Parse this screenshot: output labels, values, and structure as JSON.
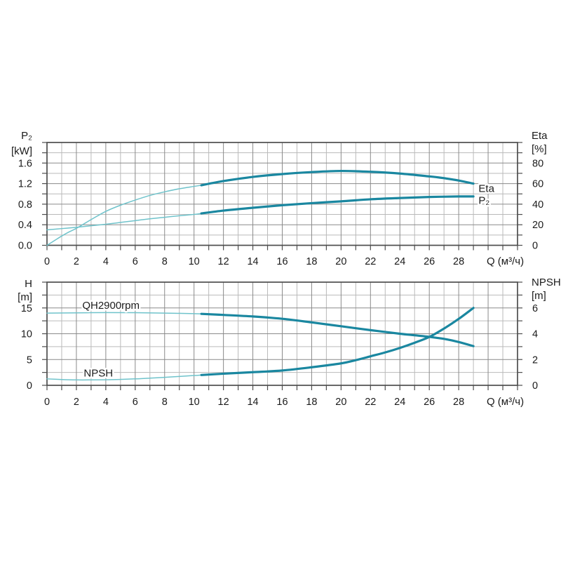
{
  "page": {
    "background": "#ffffff"
  },
  "colors": {
    "curve_main": "#1a87a0",
    "curve_light": "#6fc3cb",
    "grid_major": "#8a8a8a",
    "grid_minor": "#bababa",
    "axis": "#4d4d4d",
    "text": "#1b1b1b",
    "halo": "#ffffff"
  },
  "chart_data": [
    {
      "type": "line",
      "title": "Pump power and efficiency curves",
      "x_axis": {
        "label": "Q (м³/ч)",
        "min": 0,
        "max": 32,
        "minor_step": 1,
        "major_step": 2,
        "tick_values": [
          0,
          2,
          4,
          6,
          8,
          10,
          12,
          14,
          16,
          18,
          20,
          22,
          24,
          26,
          28
        ],
        "tick_labels": [
          "0",
          "2",
          "4",
          "6",
          "8",
          "10",
          "12",
          "14",
          "16",
          "18",
          "20",
          "22",
          "24",
          "26",
          "28"
        ]
      },
      "left_axis": {
        "title": "P₂",
        "unit": "[kW]",
        "min": 0,
        "max": 2.0,
        "minor_step": 0.2,
        "major_step": 0.4,
        "tick_values": [
          0,
          0.4,
          0.8,
          1.2,
          1.6
        ],
        "tick_labels": [
          "0.0",
          "0.4",
          "0.8",
          "1.2",
          "1.6"
        ]
      },
      "right_axis": {
        "title": "Eta",
        "unit": "[%]",
        "min": 0,
        "max": 100,
        "minor_step": 10,
        "major_step": 20,
        "tick_values": [
          0,
          20,
          40,
          60,
          80
        ],
        "tick_labels": [
          "0",
          "20",
          "40",
          "60",
          "80"
        ]
      },
      "series": [
        {
          "name": "Eta",
          "axis": "right",
          "thin_points": [
            [
              0,
              0
            ],
            [
              0.5,
              4.5
            ],
            [
              1,
              9
            ],
            [
              1.5,
              13
            ],
            [
              2,
              16.5
            ],
            [
              3,
              25
            ],
            [
              4,
              33
            ],
            [
              5,
              39
            ],
            [
              6,
              44
            ],
            [
              7,
              48.5
            ],
            [
              8,
              52
            ],
            [
              9,
              55
            ],
            [
              10,
              57.3
            ],
            [
              10.5,
              58.4
            ]
          ],
          "thick_points": [
            [
              10.5,
              58.4
            ],
            [
              12,
              62.5
            ],
            [
              14,
              66.5
            ],
            [
              16,
              69.3
            ],
            [
              18,
              71.2
            ],
            [
              20,
              72.3
            ],
            [
              22,
              71.5
            ],
            [
              24,
              69.8
            ],
            [
              26,
              67
            ],
            [
              27,
              65.3
            ],
            [
              28,
              63
            ],
            [
              29,
              60
            ]
          ]
        },
        {
          "name": "P₂",
          "axis": "left",
          "thin_points": [
            [
              0,
              0.3
            ],
            [
              1,
              0.325
            ],
            [
              2,
              0.35
            ],
            [
              3,
              0.38
            ],
            [
              4,
              0.41
            ],
            [
              5,
              0.445
            ],
            [
              6,
              0.48
            ],
            [
              7,
              0.515
            ],
            [
              8,
              0.545
            ],
            [
              9,
              0.575
            ],
            [
              10,
              0.6
            ],
            [
              10.5,
              0.62
            ]
          ],
          "thick_points": [
            [
              10.5,
              0.62
            ],
            [
              12,
              0.675
            ],
            [
              14,
              0.73
            ],
            [
              16,
              0.78
            ],
            [
              18,
              0.82
            ],
            [
              20,
              0.855
            ],
            [
              22,
              0.895
            ],
            [
              24,
              0.92
            ],
            [
              26,
              0.94
            ],
            [
              28,
              0.95
            ],
            [
              29,
              0.95
            ]
          ]
        }
      ],
      "annotations": [
        {
          "text": "Eta",
          "axis": "right",
          "x": 29.35,
          "y": 55.3,
          "anchor": "start"
        },
        {
          "text": "P₂",
          "axis": "left",
          "x": 29.35,
          "y": 0.875,
          "anchor": "start"
        }
      ]
    },
    {
      "type": "line",
      "title": "Pump head and NPSH curves",
      "x_axis": {
        "label": "Q (м³/ч)",
        "min": 0,
        "max": 32,
        "minor_step": 1,
        "major_step": 2,
        "tick_values": [
          0,
          2,
          4,
          6,
          8,
          10,
          12,
          14,
          16,
          18,
          20,
          22,
          24,
          26,
          28
        ],
        "tick_labels": [
          "0",
          "2",
          "4",
          "6",
          "8",
          "10",
          "12",
          "14",
          "16",
          "18",
          "20",
          "22",
          "24",
          "26",
          "28"
        ]
      },
      "left_axis": {
        "title": "H",
        "unit": "[m]",
        "min": 0,
        "max": 20,
        "minor_step": 2.5,
        "major_step": 5,
        "tick_values": [
          0,
          5,
          10,
          15
        ],
        "tick_labels": [
          "0",
          "5",
          "10",
          "15"
        ]
      },
      "right_axis": {
        "title": "NPSH",
        "unit": "[m]",
        "min": 0,
        "max": 8,
        "minor_step": 1,
        "major_step": 2,
        "tick_values": [
          0,
          2,
          4,
          6
        ],
        "tick_labels": [
          "0",
          "2",
          "4",
          "6"
        ]
      },
      "series": [
        {
          "name": "QH2900rpm",
          "axis": "left",
          "thin_points": [
            [
              0,
              14.0
            ],
            [
              2,
              14.05
            ],
            [
              4,
              14.1
            ],
            [
              6,
              14.08
            ],
            [
              8,
              14.0
            ],
            [
              10,
              13.9
            ],
            [
              10.5,
              13.85
            ]
          ],
          "thick_points": [
            [
              10.5,
              13.85
            ],
            [
              12,
              13.65
            ],
            [
              14,
              13.35
            ],
            [
              16,
              12.9
            ],
            [
              18,
              12.2
            ],
            [
              20,
              11.45
            ],
            [
              22,
              10.7
            ],
            [
              24,
              10.0
            ],
            [
              25,
              9.7
            ],
            [
              26,
              9.4
            ],
            [
              27,
              9.0
            ],
            [
              28,
              8.4
            ],
            [
              29,
              7.6
            ]
          ]
        },
        {
          "name": "NPSH",
          "axis": "right",
          "thin_points": [
            [
              0,
              0.5
            ],
            [
              1,
              0.45
            ],
            [
              2,
              0.42
            ],
            [
              3,
              0.42
            ],
            [
              4,
              0.43
            ],
            [
              5,
              0.46
            ],
            [
              6,
              0.5
            ],
            [
              7,
              0.56
            ],
            [
              8,
              0.62
            ],
            [
              9,
              0.69
            ],
            [
              10,
              0.76
            ],
            [
              10.5,
              0.8
            ]
          ],
          "thick_points": [
            [
              10.5,
              0.8
            ],
            [
              12,
              0.9
            ],
            [
              14,
              1.02
            ],
            [
              16,
              1.15
            ],
            [
              18,
              1.4
            ],
            [
              20,
              1.7
            ],
            [
              21,
              1.95
            ],
            [
              22,
              2.25
            ],
            [
              23,
              2.55
            ],
            [
              24,
              2.9
            ],
            [
              25,
              3.3
            ],
            [
              26,
              3.75
            ],
            [
              27,
              4.4
            ],
            [
              28,
              5.15
            ],
            [
              29,
              6.0
            ]
          ]
        }
      ],
      "annotations": [
        {
          "text": "QH2900rpm",
          "axis": "left",
          "x": 2.4,
          "y": 15.5,
          "anchor": "start"
        },
        {
          "text": "NPSH",
          "axis": "left",
          "x": 2.5,
          "y": 2.4,
          "anchor": "start"
        }
      ]
    }
  ]
}
